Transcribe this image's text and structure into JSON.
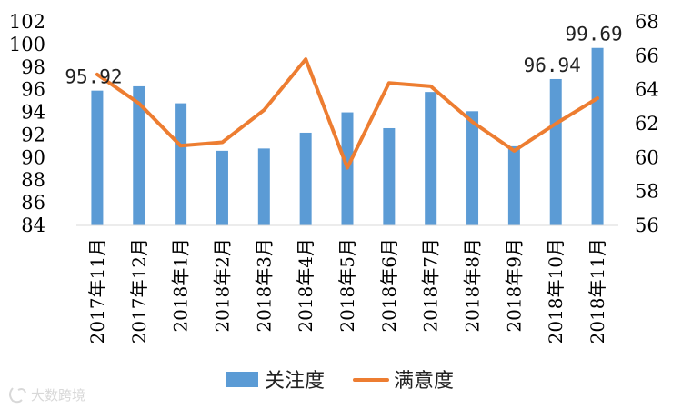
{
  "chart_data": {
    "type": "bar+line",
    "categories": [
      "2017年11月",
      "2017年12月",
      "2018年1月",
      "2018年2月",
      "2018年3月",
      "2018年4月",
      "2018年5月",
      "2018年6月",
      "2018年7月",
      "2018年8月",
      "2018年9月",
      "2018年10月",
      "2018年11月"
    ],
    "series": [
      {
        "name": "关注度",
        "type": "bar",
        "axis": "left",
        "color": "#5b9bd5",
        "values": [
          95.92,
          96.3,
          94.8,
          90.6,
          90.8,
          92.2,
          94.0,
          92.6,
          95.8,
          94.1,
          91.0,
          96.94,
          99.69
        ]
      },
      {
        "name": "满意度",
        "type": "line",
        "axis": "right",
        "color": "#ed7d31",
        "values": [
          64.9,
          63.2,
          60.7,
          60.9,
          62.8,
          65.8,
          59.4,
          64.4,
          64.2,
          62.1,
          60.4,
          62.0,
          63.5
        ]
      }
    ],
    "y_left": {
      "min": 84,
      "max": 102,
      "ticks": [
        "84",
        "86",
        "88",
        "90",
        "92",
        "94",
        "96",
        "98",
        "100",
        "102"
      ]
    },
    "y_right": {
      "min": 56,
      "max": 68,
      "ticks": [
        "56",
        "58",
        "60",
        "62",
        "64",
        "66",
        "68"
      ]
    },
    "data_labels": [
      {
        "index": 0,
        "text": "95.92"
      },
      {
        "index": 11,
        "text": "96.94"
      },
      {
        "index": 12,
        "text": "99.69"
      }
    ],
    "legend": {
      "position": "bottom",
      "items": [
        "关注度",
        "满意度"
      ]
    },
    "grid": false
  },
  "watermark": {
    "text": "大数跨境",
    "logo": "ks-logo-icon"
  }
}
